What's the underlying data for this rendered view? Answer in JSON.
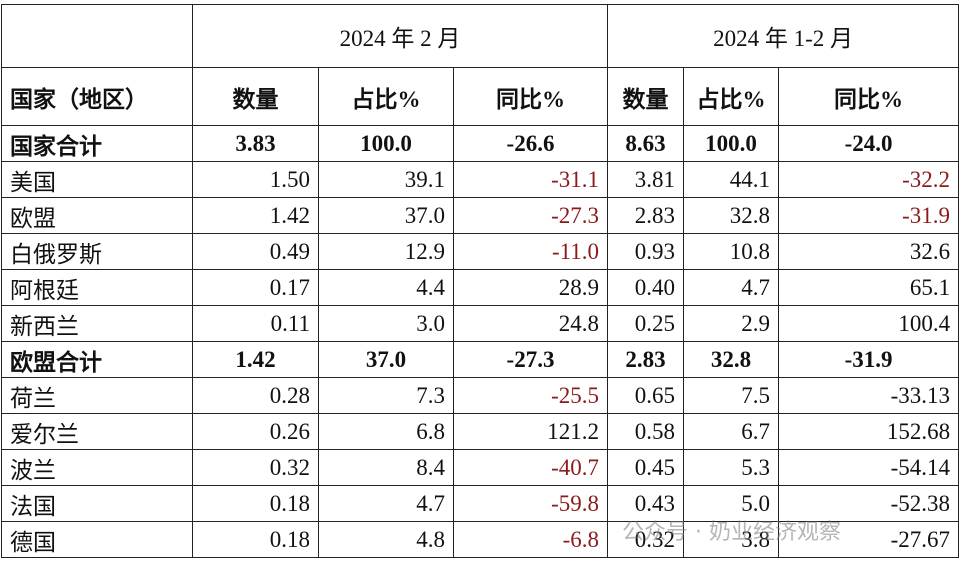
{
  "header": {
    "period1": "2024 年 2 月",
    "period2": "2024 年 1-2 月",
    "columns": [
      "国家（地区）",
      "数量",
      "占比%",
      "同比%",
      "数量",
      "占比%",
      "同比%"
    ]
  },
  "rows": [
    {
      "cells": [
        "国家合计",
        "3.83",
        "100.0",
        "-26.6",
        "8.63",
        "100.0",
        "-24.0"
      ],
      "bold": true,
      "red": []
    },
    {
      "cells": [
        "美国",
        "1.50",
        "39.1",
        "-31.1",
        "3.81",
        "44.1",
        "-32.2"
      ],
      "bold": false,
      "red": [
        3,
        6
      ]
    },
    {
      "cells": [
        "欧盟",
        "1.42",
        "37.0",
        "-27.3",
        "2.83",
        "32.8",
        "-31.9"
      ],
      "bold": false,
      "red": [
        3,
        6
      ]
    },
    {
      "cells": [
        "白俄罗斯",
        "0.49",
        "12.9",
        "-11.0",
        "0.93",
        "10.8",
        "32.6"
      ],
      "bold": false,
      "red": [
        3
      ]
    },
    {
      "cells": [
        "阿根廷",
        "0.17",
        "4.4",
        "28.9",
        "0.40",
        "4.7",
        "65.1"
      ],
      "bold": false,
      "red": []
    },
    {
      "cells": [
        "新西兰",
        "0.11",
        "3.0",
        "24.8",
        "0.25",
        "2.9",
        "100.4"
      ],
      "bold": false,
      "red": []
    },
    {
      "cells": [
        "欧盟合计",
        "1.42",
        "37.0",
        "-27.3",
        "2.83",
        "32.8",
        "-31.9"
      ],
      "bold": true,
      "red": []
    },
    {
      "cells": [
        "荷兰",
        "0.28",
        "7.3",
        "-25.5",
        "0.65",
        "7.5",
        "-33.13"
      ],
      "bold": false,
      "red": [
        3
      ]
    },
    {
      "cells": [
        "爱尔兰",
        "0.26",
        "6.8",
        "121.2",
        "0.58",
        "6.7",
        "152.68"
      ],
      "bold": false,
      "red": []
    },
    {
      "cells": [
        "波兰",
        "0.32",
        "8.4",
        "-40.7",
        "0.45",
        "5.3",
        "-54.14"
      ],
      "bold": false,
      "red": [
        3
      ]
    },
    {
      "cells": [
        "法国",
        "0.18",
        "4.7",
        "-59.8",
        "0.43",
        "5.0",
        "-52.38"
      ],
      "bold": false,
      "red": [
        3
      ]
    },
    {
      "cells": [
        "德国",
        "0.18",
        "4.8",
        "-6.8",
        "0.32",
        "3.8",
        "-27.67"
      ],
      "bold": false,
      "red": [
        3
      ]
    }
  ],
  "watermark": "公众号 · 奶业经济观察"
}
